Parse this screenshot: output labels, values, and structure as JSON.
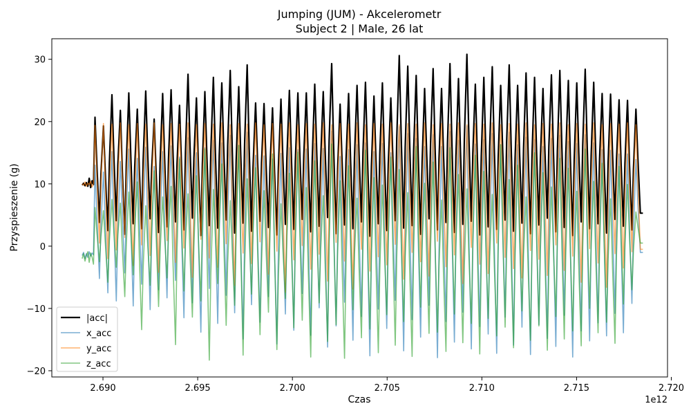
{
  "chart_data": {
    "type": "line",
    "title": "Jumping (JUM) - Akcelerometr",
    "subtitle": "Subject 2 | Male, 26 lat",
    "xlabel": "Czas",
    "ylabel": "Przyspieszenie (g)",
    "x_offset_label": "1e12",
    "xlim": [
      2.6873,
      2.7198
    ],
    "ylim": [
      -21.0,
      33.3
    ],
    "x_ticks": [
      2.69,
      2.695,
      2.7,
      2.705,
      2.71,
      2.715,
      2.72
    ],
    "x_tick_labels": [
      "2.690",
      "2.695",
      "2.700",
      "2.705",
      "2.710",
      "2.715",
      "2.720"
    ],
    "y_ticks": [
      -20,
      -10,
      0,
      10,
      20,
      30
    ],
    "y_tick_labels": [
      "−20",
      "−10",
      "0",
      "10",
      "20",
      "30"
    ],
    "legend_position": "lower-left",
    "grid": false,
    "data_start_x": 2.6889,
    "data_end_x": 2.7185,
    "jump_start_x": 2.6895,
    "series": [
      {
        "name": "|acc|",
        "color": "#000000",
        "draw_order": 0,
        "stroke_width": 2.2,
        "opacity": 1.0,
        "rest_values": [
          9.8,
          10.1,
          9.7,
          10.2,
          9.6,
          10.9,
          9.4,
          10.5,
          9.9
        ],
        "peaks": [
          20.7,
          19.3,
          24.3,
          21.8,
          24.6,
          22.0,
          24.9,
          20.4,
          24.5,
          25.1,
          22.6,
          27.6,
          23.8,
          24.8,
          27.1,
          26.2,
          28.2,
          25.6,
          29.1,
          23.0,
          22.9,
          22.2,
          23.6,
          25.0,
          24.6,
          24.6,
          26.0,
          24.8,
          29.3,
          22.8,
          24.5,
          25.8,
          26.3,
          24.1,
          26.2,
          23.8,
          30.6,
          28.9,
          27.4,
          25.3,
          28.5,
          25.3,
          29.3,
          26.9,
          30.8,
          26.0,
          27.1,
          28.8,
          25.8,
          29.1,
          25.8,
          27.8,
          27.1,
          25.3,
          27.5,
          28.2,
          26.6,
          26.2,
          28.4,
          26.3,
          24.5,
          24.4,
          23.5,
          23.4,
          22.0
        ],
        "troughs": [
          3.8,
          2.5,
          4.1,
          1.9,
          3.6,
          2.8,
          4.4,
          2.2,
          3.1,
          3.9,
          2.6,
          4.5,
          1.7,
          3.3,
          2.9,
          4.2,
          2.1,
          3.7,
          2.4,
          4.0,
          3.0,
          1.8,
          3.5,
          2.7,
          4.3,
          2.3,
          3.2,
          4.6,
          2.0,
          3.4,
          2.8,
          3.9,
          1.6,
          3.6,
          2.5,
          4.1,
          2.9,
          3.3,
          1.9,
          4.4,
          2.6,
          3.8,
          2.2,
          3.5,
          4.0,
          1.8,
          3.1,
          2.7,
          4.2,
          2.4,
          3.7,
          2.0,
          3.4,
          4.5,
          2.3,
          3.0,
          1.7,
          3.9,
          2.8,
          3.6,
          2.1,
          4.3,
          3.2,
          2.6,
          5.3
        ],
        "end_value": 5.3
      },
      {
        "name": "x_acc",
        "color": "#1f77b4",
        "draw_order": 1,
        "stroke_width": 1.6,
        "opacity": 0.6,
        "rest_values": [
          -1.5,
          -1.0,
          -2.0,
          -1.2,
          -1.8,
          -0.9,
          -1.6,
          -1.1,
          -1.4
        ],
        "peaks": [
          13.0,
          11.9,
          15.2,
          13.6,
          15.6,
          14.1,
          15.9,
          12.8,
          15.2,
          16.1,
          14.3,
          17.4,
          15.0,
          15.8,
          17.0,
          16.6,
          17.8,
          16.2,
          18.3,
          14.6,
          14.5,
          14.0,
          14.9,
          15.8,
          15.5,
          15.6,
          16.5,
          15.7,
          18.5,
          14.4,
          15.5,
          16.3,
          16.6,
          15.2,
          16.5,
          15.0,
          19.2,
          18.1,
          17.3,
          16.0,
          17.9,
          16.0,
          18.4,
          17.0,
          19.3,
          16.4,
          17.1,
          18.1,
          16.3,
          18.3,
          16.3,
          17.5,
          17.1,
          16.0,
          17.3,
          17.8,
          16.8,
          16.5,
          17.9,
          16.6,
          15.5,
          15.4,
          14.8,
          14.8,
          13.9
        ],
        "troughs": [
          -5.2,
          -7.5,
          -8.8,
          -4.3,
          -9.6,
          -6.1,
          -10.2,
          -7.0,
          -8.3,
          -5.5,
          -11.5,
          -9.1,
          -13.8,
          -6.8,
          -12.4,
          -7.9,
          -10.7,
          -14.9,
          -9.4,
          -12.2,
          -8.1,
          -15.7,
          -10.9,
          -13.5,
          -7.6,
          -14.3,
          -9.9,
          -16.2,
          -12.8,
          -9.0,
          -15.1,
          -11.3,
          -17.6,
          -10.1,
          -13.2,
          -8.7,
          -16.8,
          -11.8,
          -14.6,
          -9.5,
          -17.9,
          -12.1,
          -15.4,
          -10.6,
          -16.5,
          -12.9,
          -14.1,
          -17.2,
          -11.4,
          -15.9,
          -13.0,
          -17.4,
          -12.6,
          -14.8,
          -16.1,
          -11.1,
          -17.8,
          -13.6,
          -15.2,
          -12.3,
          -14.4,
          -10.8,
          -13.9,
          -9.2,
          -1.0
        ],
        "end_value": -1.0
      },
      {
        "name": "y_acc",
        "color": "#ff7f0e",
        "draw_order": 2,
        "stroke_width": 1.6,
        "opacity": 0.6,
        "rest_values": [
          10.0,
          9.8,
          10.3,
          9.6,
          10.1,
          9.9,
          10.4,
          9.5,
          10.0
        ],
        "peaks": [
          19.4,
          19.7,
          19.6,
          19.8,
          19.5,
          19.7,
          19.6,
          19.8,
          19.5,
          19.7,
          19.6,
          19.8,
          19.5,
          19.7,
          19.6,
          19.8,
          19.5,
          19.7,
          19.6,
          19.8,
          19.5,
          19.7,
          19.6,
          19.8,
          19.5,
          19.7,
          19.6,
          19.8,
          19.5,
          19.7,
          19.6,
          19.8,
          19.5,
          19.7,
          19.6,
          19.8,
          19.5,
          19.7,
          19.6,
          19.8,
          19.5,
          19.7,
          19.6,
          19.8,
          19.5,
          19.7,
          19.6,
          19.8,
          19.5,
          19.7,
          19.6,
          19.8,
          19.5,
          19.7,
          19.6,
          19.8,
          19.5,
          19.7,
          19.6,
          19.8,
          19.5,
          19.7,
          19.6,
          19.8,
          19.5
        ],
        "troughs": [
          0.5,
          -2.0,
          -0.6,
          1.4,
          -3.1,
          0.2,
          -1.5,
          -4.2,
          0.9,
          -2.6,
          -0.3,
          -5.0,
          1.1,
          -1.9,
          -3.4,
          0.4,
          -6.3,
          -1.1,
          -2.8,
          0.7,
          -4.5,
          -0.8,
          -7.4,
          -2.2,
          0.1,
          -3.7,
          -1.3,
          -5.6,
          0.6,
          -2.4,
          -6.9,
          -0.5,
          -4.0,
          -1.7,
          -3.0,
          0.3,
          -5.3,
          -1.0,
          -2.5,
          -4.8,
          0.8,
          -3.3,
          -1.4,
          -6.0,
          -0.2,
          -2.9,
          -4.4,
          0.5,
          -1.8,
          -3.6,
          -5.1,
          -0.7,
          -2.1,
          -4.7,
          0.2,
          -3.9,
          -1.6,
          -5.8,
          -0.4,
          -2.7,
          -6.6,
          -1.2,
          -3.5,
          -0.9,
          -0.5
        ],
        "end_value": -0.5
      },
      {
        "name": "z_acc",
        "color": "#2ca02c",
        "draw_order": 3,
        "stroke_width": 1.6,
        "opacity": 0.6,
        "rest_values": [
          -2.0,
          -1.2,
          -2.4,
          -1.5,
          -0.9,
          -2.6,
          -1.1,
          -1.8,
          -2.9
        ],
        "peaks": [
          6.2,
          5.7,
          7.5,
          6.9,
          8.7,
          10.3,
          6.5,
          12.1,
          7.9,
          9.6,
          14.0,
          8.4,
          11.3,
          15.6,
          9.1,
          13.2,
          7.3,
          16.2,
          10.8,
          12.6,
          8.9,
          14.8,
          6.8,
          11.7,
          15.1,
          9.4,
          13.7,
          8.1,
          16.4,
          10.5,
          12.9,
          7.7,
          15.4,
          11.0,
          9.8,
          14.3,
          12.3,
          8.6,
          16.0,
          10.1,
          13.5,
          7.4,
          15.8,
          11.5,
          9.2,
          14.6,
          12.0,
          8.3,
          16.3,
          10.7,
          13.0,
          7.9,
          15.0,
          11.8,
          9.5,
          14.1,
          12.5,
          8.8,
          15.6,
          10.4,
          13.3,
          7.6,
          12.8,
          9.9,
          5.5
        ],
        "troughs": [
          -2.5,
          -5.8,
          -3.4,
          -8.1,
          -4.6,
          -13.4,
          -6.3,
          -9.7,
          -5.1,
          -15.8,
          -7.2,
          -11.4,
          -8.8,
          -18.3,
          -6.0,
          -12.7,
          -9.5,
          -17.5,
          -7.7,
          -14.2,
          -10.6,
          -16.6,
          -8.4,
          -13.1,
          -11.9,
          -17.8,
          -9.1,
          -15.3,
          -12.6,
          -18.0,
          -10.2,
          -14.7,
          -13.3,
          -17.1,
          -11.0,
          -15.9,
          -12.1,
          -17.7,
          -9.8,
          -14.0,
          -13.8,
          -16.9,
          -10.9,
          -15.5,
          -12.4,
          -17.3,
          -11.6,
          -14.4,
          -13.0,
          -16.3,
          -10.4,
          -15.1,
          -12.8,
          -16.7,
          -11.3,
          -14.9,
          -13.6,
          -16.0,
          -10.0,
          -13.9,
          -12.2,
          -15.6,
          -9.3,
          -7.0,
          0.5
        ],
        "end_value": 0.5
      }
    ]
  }
}
